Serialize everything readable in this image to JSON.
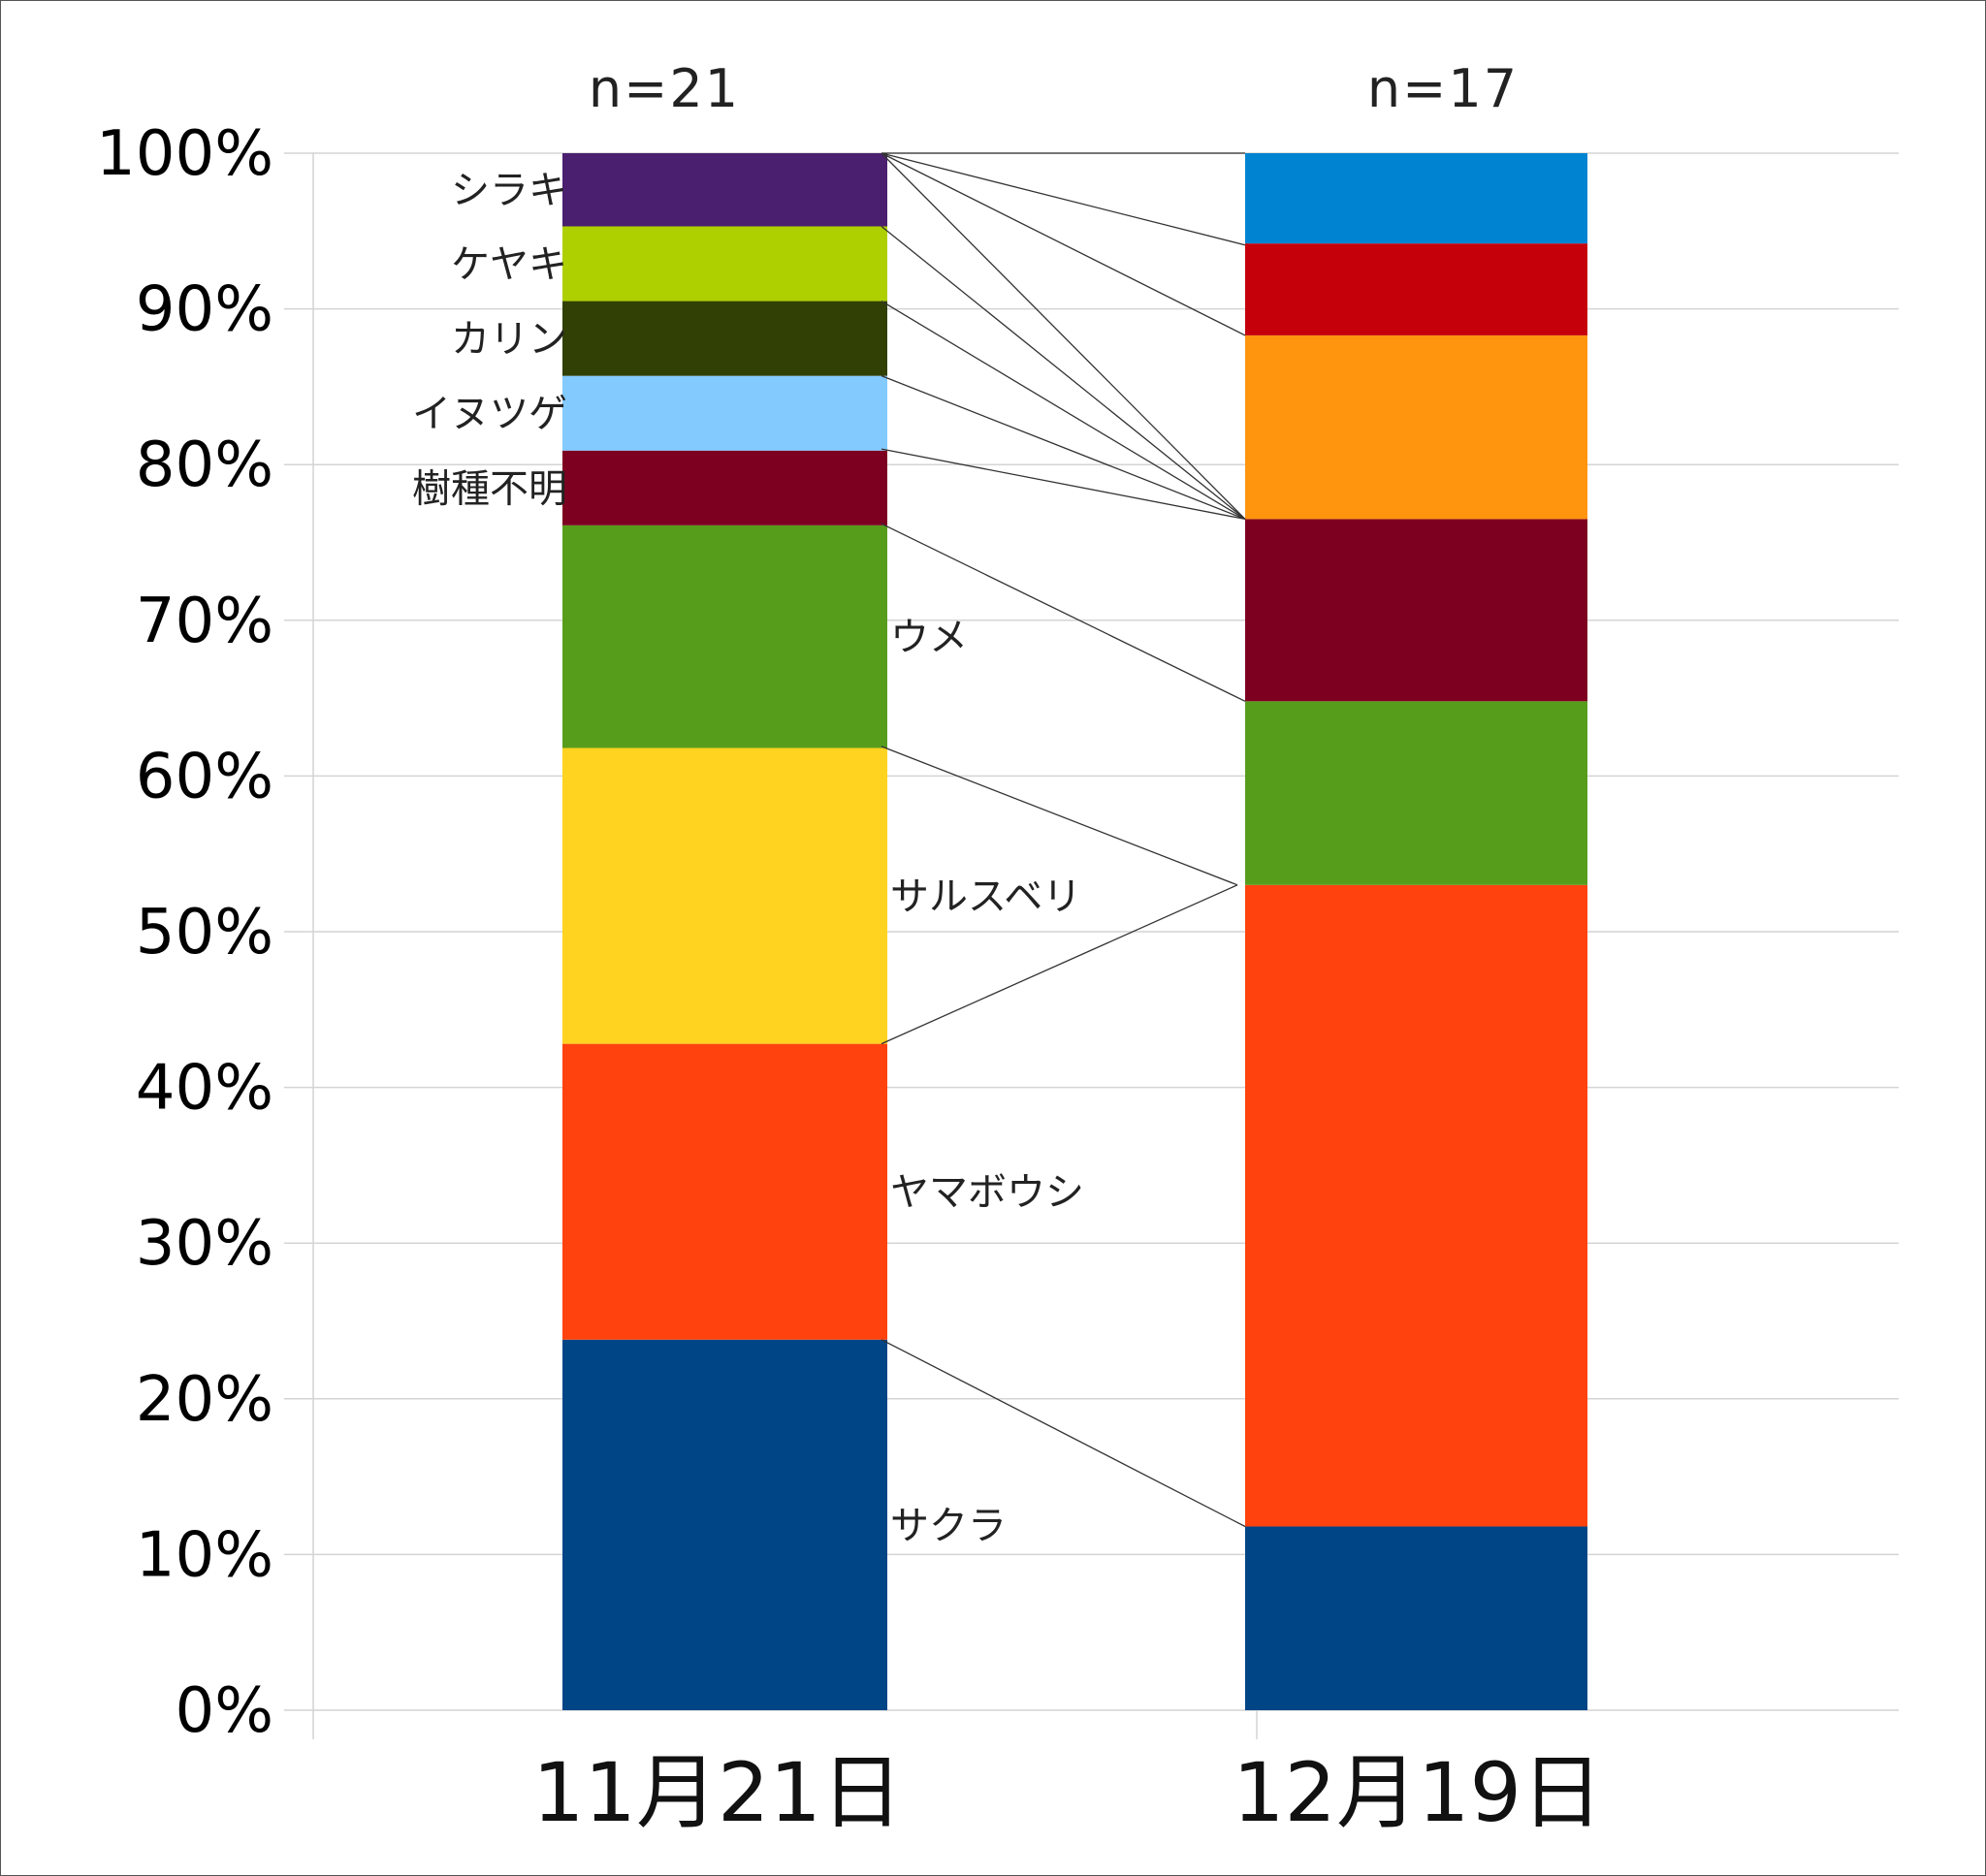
{
  "chart_data": {
    "type": "bar",
    "stacked": true,
    "percent": true,
    "categories": [
      "11月21日",
      "12月19日"
    ],
    "sample_sizes": [
      "n=21",
      "n=17"
    ],
    "y_ticks": [
      "0%",
      "10%",
      "20%",
      "30%",
      "40%",
      "50%",
      "60%",
      "70%",
      "80%",
      "90%",
      "100%"
    ],
    "ylim": [
      0,
      100
    ],
    "grid": true,
    "legend": "none",
    "stacks": [
      {
        "category": "11月21日",
        "segments": [
          {
            "label": "サクラ",
            "value": 23.8,
            "color": "#004586"
          },
          {
            "label": "ヤマボウシ",
            "value": 19.0,
            "color": "#ff420e"
          },
          {
            "label": "サルスベリ",
            "value": 19.0,
            "color": "#ffd320"
          },
          {
            "label": "ウメ",
            "value": 14.3,
            "color": "#579d1c"
          },
          {
            "label": "樹種不明",
            "value": 4.8,
            "color": "#7e0021"
          },
          {
            "label": "イヌツゲ",
            "value": 4.8,
            "color": "#83caff"
          },
          {
            "label": "カリン",
            "value": 4.8,
            "color": "#314004"
          },
          {
            "label": "ケヤキ",
            "value": 4.8,
            "color": "#aecf00"
          },
          {
            "label": "シラキ",
            "value": 4.7,
            "color": "#4b1f6f"
          }
        ]
      },
      {
        "category": "12月19日",
        "segments": [
          {
            "value": 11.8,
            "color": "#004586"
          },
          {
            "value": 41.2,
            "color": "#ff420e"
          },
          {
            "value": 11.8,
            "color": "#579d1c"
          },
          {
            "value": 11.7,
            "color": "#7e0021"
          },
          {
            "value": 11.8,
            "color": "#ff950e"
          },
          {
            "value": 5.9,
            "color": "#c5000b"
          },
          {
            "value": 5.8,
            "color": "#0084d1"
          }
        ]
      }
    ],
    "connectors": [
      {
        "from_pct": 23.8,
        "to_pct": 11.8
      },
      {
        "from_pct": 61.9,
        "to_pct": 53.0
      },
      {
        "from_pct": 42.8,
        "to_pct": 53.0
      },
      {
        "from_pct": 76.2,
        "to_pct": 64.8
      },
      {
        "from_pct": 81.0,
        "to_pct": 76.5
      },
      {
        "from_pct": 85.7,
        "to_pct": 76.5
      },
      {
        "from_pct": 90.5,
        "to_pct": 76.5
      },
      {
        "from_pct": 95.3,
        "to_pct": 76.5
      },
      {
        "from_pct": 100.0,
        "to_pct": 76.5
      },
      {
        "from_pct": 100.0,
        "to_pct": 88.3
      },
      {
        "from_pct": 100.0,
        "to_pct": 94.1
      },
      {
        "from_pct": 100.0,
        "to_pct": 100.0
      }
    ]
  }
}
